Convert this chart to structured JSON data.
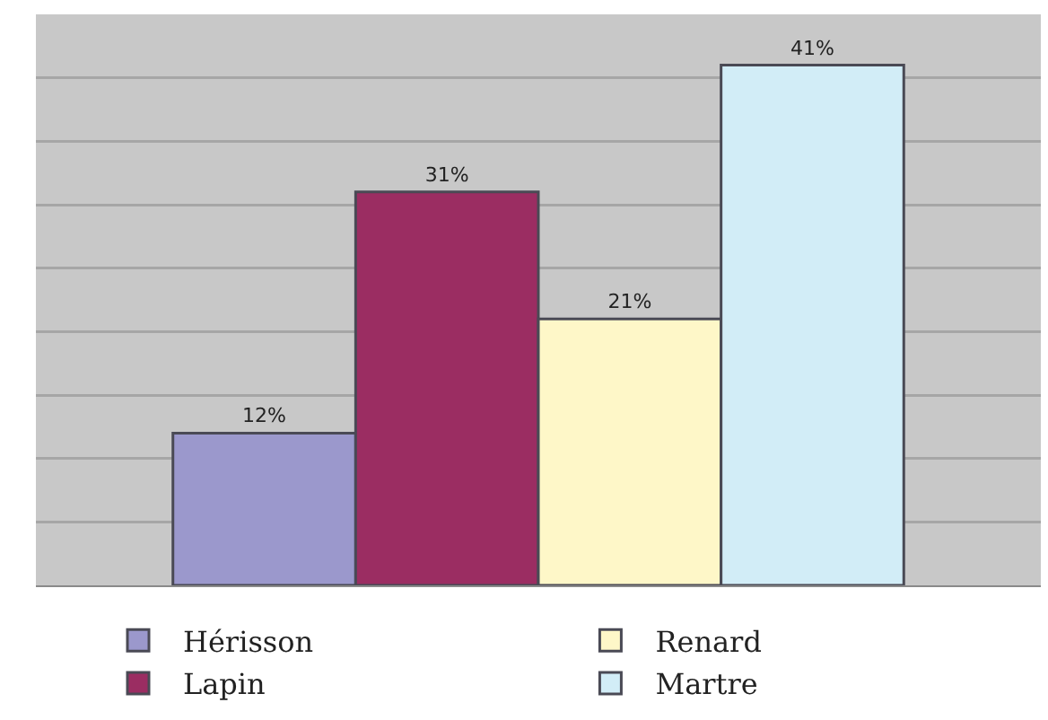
{
  "chart_data": {
    "type": "bar",
    "categories": [
      null
    ],
    "series": [
      {
        "name": "Hérisson",
        "color": "#9b98cc",
        "values": [
          12
        ],
        "value_labels": [
          "12%"
        ]
      },
      {
        "name": "Lapin",
        "color": "#9b2d62",
        "values": [
          31
        ],
        "value_labels": [
          "31%"
        ]
      },
      {
        "name": "Renard",
        "color": "#fef7c8",
        "values": [
          21
        ],
        "value_labels": [
          "21%"
        ]
      },
      {
        "name": "Martre",
        "color": "#d2edf7",
        "values": [
          41
        ],
        "value_labels": [
          "41%"
        ]
      }
    ],
    "ylim": [
      0,
      45
    ],
    "yticks": [
      {
        "value": 0,
        "label": null
      },
      {
        "value": 5,
        "label": null
      },
      {
        "value": 10,
        "label": null
      },
      {
        "value": 15,
        "label": null
      },
      {
        "value": 20,
        "label": null
      },
      {
        "value": 25,
        "label": null
      },
      {
        "value": 30,
        "label": null
      },
      {
        "value": 35,
        "label": null
      },
      {
        "value": 40,
        "label": null
      },
      {
        "value": 45,
        "label": null
      }
    ],
    "grid": "y",
    "legend": "bottom",
    "tick_labels": false
  }
}
